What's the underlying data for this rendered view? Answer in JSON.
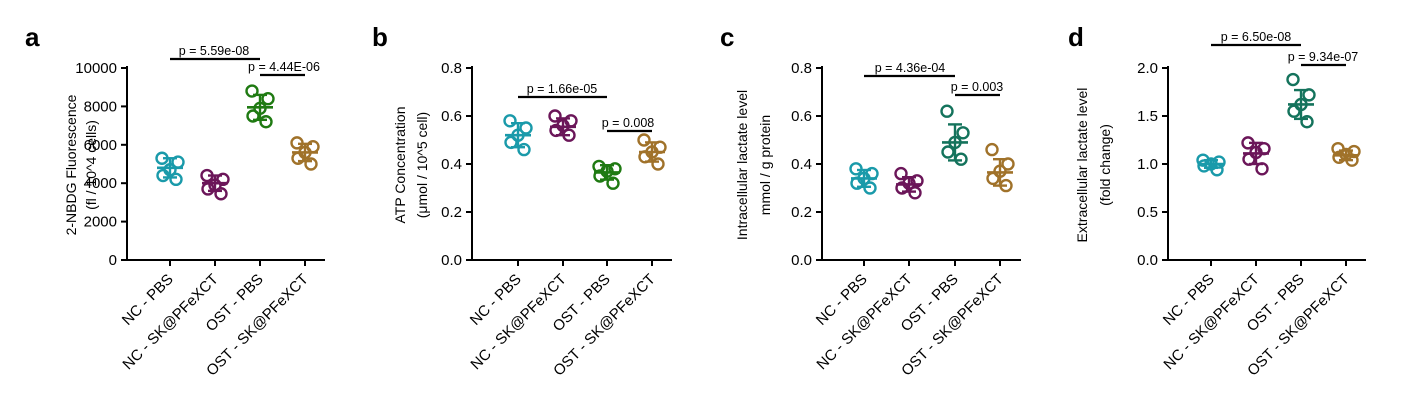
{
  "colors": {
    "NC_PBS": "#1a9aaa",
    "NC_SK": "#6b1659",
    "OST_PBS_green": "#1f7a12",
    "OST_PBS_teal": "#14735c",
    "OST_SK": "#a0722a"
  },
  "chart_data": [
    {
      "type": "scatter",
      "panel": "a",
      "ylabel": [
        "2-NBDG Fluorescence",
        "(fl / 10^4 cells)"
      ],
      "ylim": [
        0,
        10000
      ],
      "yticks": [
        "0",
        "2000",
        "4000",
        "6000",
        "8000",
        "10000"
      ],
      "ytick_values": [
        0,
        2000,
        4000,
        6000,
        8000,
        10000
      ],
      "categories": [
        "NC - PBS",
        "NC - SK@PFeXCT",
        "OST - PBS",
        "OST - SK@PFeXCT"
      ],
      "series": [
        {
          "name": "NC - PBS",
          "color": "#1a9aaa",
          "mean": 4800,
          "sd": 500,
          "points": [
            5300,
            5100,
            4700,
            4400,
            4200
          ]
        },
        {
          "name": "NC - SK@PFeXCT",
          "color": "#6b1659",
          "mean": 4000,
          "sd": 400,
          "points": [
            4400,
            4200,
            3900,
            3700,
            3450
          ]
        },
        {
          "name": "OST - PBS",
          "color": "#1f7a12",
          "mean": 7950,
          "sd": 650,
          "points": [
            8800,
            8400,
            7900,
            7500,
            7200
          ]
        },
        {
          "name": "OST - SK@PFeXCT",
          "color": "#a0722a",
          "mean": 5600,
          "sd": 450,
          "points": [
            6100,
            5900,
            5600,
            5300,
            5000
          ]
        }
      ],
      "comparisons": [
        {
          "from": 0,
          "to": 2,
          "label": "p = 5.59e-08"
        },
        {
          "from": 2,
          "to": 3,
          "label": "p = 4.44E-06"
        }
      ]
    },
    {
      "type": "scatter",
      "panel": "b",
      "ylabel": [
        "ATP Concentration",
        "(μmol / 10^5 cell)"
      ],
      "ylim": [
        0,
        0.8
      ],
      "yticks": [
        "0.0",
        "0.2",
        "0.4",
        "0.6",
        "0.8"
      ],
      "ytick_values": [
        0,
        0.2,
        0.4,
        0.6,
        0.8
      ],
      "categories": [
        "NC - PBS",
        "NC - SK@PFeXCT",
        "OST - PBS",
        "OST - SK@PFeXCT"
      ],
      "series": [
        {
          "name": "NC - PBS",
          "color": "#1a9aaa",
          "mean": 0.52,
          "sd": 0.05,
          "points": [
            0.58,
            0.55,
            0.52,
            0.49,
            0.46
          ]
        },
        {
          "name": "NC - SK@PFeXCT",
          "color": "#6b1659",
          "mean": 0.555,
          "sd": 0.035,
          "points": [
            0.6,
            0.58,
            0.56,
            0.54,
            0.52
          ]
        },
        {
          "name": "OST - PBS",
          "color": "#1f7a12",
          "mean": 0.365,
          "sd": 0.03,
          "points": [
            0.39,
            0.38,
            0.37,
            0.35,
            0.32
          ]
        },
        {
          "name": "OST - SK@PFeXCT",
          "color": "#a0722a",
          "mean": 0.45,
          "sd": 0.04,
          "points": [
            0.5,
            0.47,
            0.45,
            0.43,
            0.4
          ]
        }
      ],
      "comparisons": [
        {
          "from": 0,
          "to": 2,
          "label": "p = 1.66e-05"
        },
        {
          "from": 2,
          "to": 3,
          "label": "p = 0.008"
        }
      ]
    },
    {
      "type": "scatter",
      "panel": "c",
      "ylabel": [
        "Intracellular lactate level",
        "mmol / g protein"
      ],
      "ylim": [
        0,
        0.8
      ],
      "yticks": [
        "0.0",
        "0.2",
        "0.4",
        "0.6",
        "0.8"
      ],
      "ytick_values": [
        0,
        0.2,
        0.4,
        0.6,
        0.8
      ],
      "categories": [
        "NC - PBS",
        "NC - SK@PFeXCT",
        "OST - PBS",
        "OST - SK@PFeXCT"
      ],
      "series": [
        {
          "name": "NC - PBS",
          "color": "#1a9aaa",
          "mean": 0.34,
          "sd": 0.035,
          "points": [
            0.38,
            0.36,
            0.34,
            0.32,
            0.3
          ]
        },
        {
          "name": "NC - SK@PFeXCT",
          "color": "#6b1659",
          "mean": 0.315,
          "sd": 0.03,
          "points": [
            0.36,
            0.33,
            0.32,
            0.3,
            0.28
          ]
        },
        {
          "name": "OST - PBS",
          "color": "#14735c",
          "mean": 0.49,
          "sd": 0.075,
          "points": [
            0.62,
            0.53,
            0.49,
            0.45,
            0.42
          ]
        },
        {
          "name": "OST - SK@PFeXCT",
          "color": "#a0722a",
          "mean": 0.365,
          "sd": 0.055,
          "points": [
            0.46,
            0.4,
            0.37,
            0.34,
            0.31
          ]
        }
      ],
      "comparisons": [
        {
          "from": 0,
          "to": 2,
          "label": "p = 4.36e-04"
        },
        {
          "from": 2,
          "to": 3,
          "label": "p = 0.003"
        }
      ]
    },
    {
      "type": "scatter",
      "panel": "d",
      "ylabel": [
        "Extracellular lactate level",
        "(fold change)"
      ],
      "ylim": [
        0,
        2.0
      ],
      "yticks": [
        "0.0",
        "0.5",
        "1.0",
        "1.5",
        "2.0"
      ],
      "ytick_values": [
        0,
        0.5,
        1.0,
        1.5,
        2.0
      ],
      "categories": [
        "NC - PBS",
        "NC - SK@PFeXCT",
        "OST - PBS",
        "OST - SK@PFeXCT"
      ],
      "series": [
        {
          "name": "NC - PBS",
          "color": "#1a9aaa",
          "mean": 1.0,
          "sd": 0.04,
          "points": [
            1.04,
            1.02,
            1.0,
            0.98,
            0.94
          ]
        },
        {
          "name": "NC - SK@PFeXCT",
          "color": "#6b1659",
          "mean": 1.11,
          "sd": 0.11,
          "points": [
            1.22,
            1.16,
            1.12,
            1.05,
            0.95
          ]
        },
        {
          "name": "OST - PBS",
          "color": "#14735c",
          "mean": 1.62,
          "sd": 0.15,
          "points": [
            1.88,
            1.72,
            1.62,
            1.55,
            1.44
          ]
        },
        {
          "name": "OST - SK@PFeXCT",
          "color": "#a0722a",
          "mean": 1.09,
          "sd": 0.05,
          "points": [
            1.16,
            1.13,
            1.1,
            1.07,
            1.04
          ]
        }
      ],
      "comparisons": [
        {
          "from": 0,
          "to": 2,
          "label": "p = 6.50e-08"
        },
        {
          "from": 2,
          "to": 3,
          "label": "p = 9.34e-07"
        }
      ]
    }
  ]
}
